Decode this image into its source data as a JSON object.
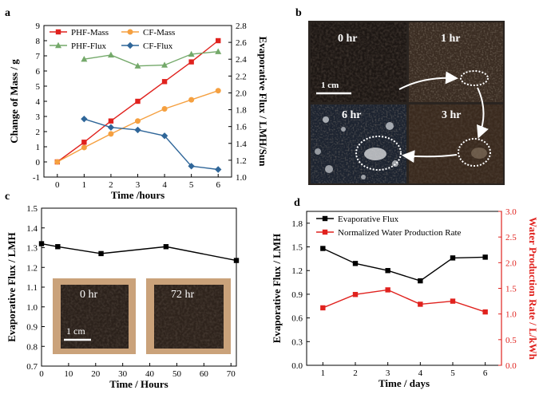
{
  "panels": {
    "a": {
      "label": "a"
    },
    "b": {
      "label": "b"
    },
    "c": {
      "label": "c"
    },
    "d": {
      "label": "d"
    }
  },
  "photo_b": {
    "label_0": "0 hr",
    "label_1": "1 hr",
    "label_3": "3 hr",
    "label_6": "6 hr",
    "scale": "1 cm"
  },
  "inset_c": {
    "label_0": "0 hr",
    "label_72": "72 hr",
    "scale": "1 cm"
  },
  "chart_data": [
    {
      "id": "a",
      "type": "line",
      "xlabel": "Time /hours",
      "ylabel": "Change of Mass / g",
      "y2label": "Evaporative Flux / LMH/Sun",
      "xlim": [
        -0.5,
        6.5
      ],
      "ylim": [
        -1,
        9
      ],
      "y2lim": [
        1.0,
        2.8
      ],
      "xticks": [
        0,
        1,
        2,
        3,
        4,
        5,
        6
      ],
      "yticks": [
        -1,
        0,
        1,
        2,
        3,
        4,
        5,
        6,
        7,
        8,
        9
      ],
      "y2ticks": [
        1.0,
        1.2,
        1.4,
        1.6,
        1.8,
        2.0,
        2.2,
        2.4,
        2.6,
        2.8
      ],
      "legend": "top-left",
      "series": [
        {
          "name": "PHF-Mass",
          "axis": "left",
          "color": "#e0221e",
          "marker": "square",
          "x": [
            0,
            1,
            2,
            3,
            4,
            5,
            6
          ],
          "y": [
            0,
            1.3,
            2.7,
            4.0,
            5.3,
            6.6,
            8.0
          ]
        },
        {
          "name": "CF-Mass",
          "axis": "left",
          "color": "#f5a040",
          "marker": "circle",
          "x": [
            0,
            1,
            2,
            3,
            4,
            5,
            6
          ],
          "y": [
            0,
            0.95,
            1.85,
            2.7,
            3.5,
            4.1,
            4.7
          ]
        },
        {
          "name": "PHF-Flux",
          "axis": "right",
          "color": "#74a96a",
          "marker": "triangle",
          "x": [
            1,
            2,
            3,
            4,
            5,
            6
          ],
          "y": [
            2.4,
            2.45,
            2.32,
            2.33,
            2.46,
            2.49
          ]
        },
        {
          "name": "CF-Flux",
          "axis": "right",
          "color": "#2f6699",
          "marker": "diamond",
          "x": [
            1,
            2,
            3,
            4,
            5,
            6
          ],
          "y": [
            1.69,
            1.59,
            1.56,
            1.49,
            1.13,
            1.09
          ]
        }
      ]
    },
    {
      "id": "c",
      "type": "line",
      "xlabel": "Time / Hours",
      "ylabel": "Evaporative Flux / LMH",
      "xlim": [
        0,
        72
      ],
      "ylim": [
        0.7,
        1.5
      ],
      "xticks": [
        0,
        10,
        20,
        30,
        40,
        50,
        60,
        70
      ],
      "yticks": [
        0.7,
        0.8,
        0.9,
        1.0,
        1.1,
        1.2,
        1.3,
        1.4,
        1.5
      ],
      "series": [
        {
          "color": "#000000",
          "marker": "square",
          "x": [
            0,
            6,
            22,
            46,
            72
          ],
          "y": [
            1.32,
            1.305,
            1.27,
            1.305,
            1.235
          ]
        }
      ]
    },
    {
      "id": "d",
      "type": "line",
      "xlabel": "Time / days",
      "ylabel": "Evaporative Flux / LMH",
      "y2label": "Water Production Rate / L/kWh",
      "xlim": [
        0.5,
        6.5
      ],
      "ylim": [
        0.0,
        1.95
      ],
      "y2lim": [
        0.0,
        3.0
      ],
      "xticks": [
        1,
        2,
        3,
        4,
        5,
        6
      ],
      "yticks": [
        0.0,
        0.3,
        0.6,
        0.9,
        1.2,
        1.5,
        1.8
      ],
      "y2ticks": [
        0.0,
        0.5,
        1.0,
        1.5,
        2.0,
        2.5,
        3.0
      ],
      "legend": "top-left",
      "series": [
        {
          "name": "Evaporative Flux",
          "axis": "left",
          "color": "#000000",
          "marker": "square",
          "x": [
            1,
            2,
            3,
            4,
            5,
            6
          ],
          "y": [
            1.48,
            1.29,
            1.2,
            1.07,
            1.36,
            1.37
          ]
        },
        {
          "name": "Normalized Water Production Rate",
          "axis": "right",
          "color": "#e0221e",
          "marker": "square",
          "x": [
            1,
            2,
            3,
            4,
            5,
            6
          ],
          "y": [
            1.12,
            1.38,
            1.47,
            1.19,
            1.25,
            1.04
          ]
        }
      ]
    }
  ]
}
